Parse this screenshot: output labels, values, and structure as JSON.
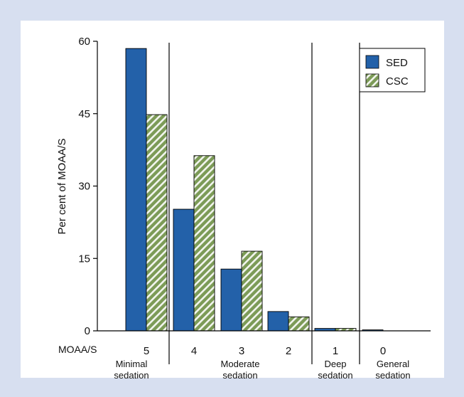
{
  "chart_data": {
    "type": "bar",
    "ylabel": "Per cent of MOAA/S",
    "xlabel": "MOAA/S",
    "ylim": [
      0,
      60
    ],
    "yticks": [
      "0",
      "15",
      "30",
      "45",
      "60"
    ],
    "categories": [
      "5",
      "4",
      "3",
      "2",
      "1",
      "0"
    ],
    "series": [
      {
        "name": "SED",
        "values": [
          58.5,
          25.2,
          12.8,
          4.0,
          0.5,
          0.2
        ],
        "color": "#2361a9"
      },
      {
        "name": "CSC",
        "values": [
          44.8,
          36.3,
          16.5,
          2.9,
          0.5,
          0.0
        ],
        "color": "#7c9b57",
        "pattern": "diagonal-hatch"
      }
    ],
    "groups": [
      {
        "label_lines": [
          "Minimal",
          "sedation"
        ]
      },
      {
        "label_lines": [
          "Moderate",
          "sedation"
        ]
      },
      {
        "label_lines": [
          "Deep",
          "sedation"
        ]
      },
      {
        "label_lines": [
          "General",
          "sedation"
        ]
      }
    ],
    "legend_position": "top-right",
    "grid": false
  }
}
